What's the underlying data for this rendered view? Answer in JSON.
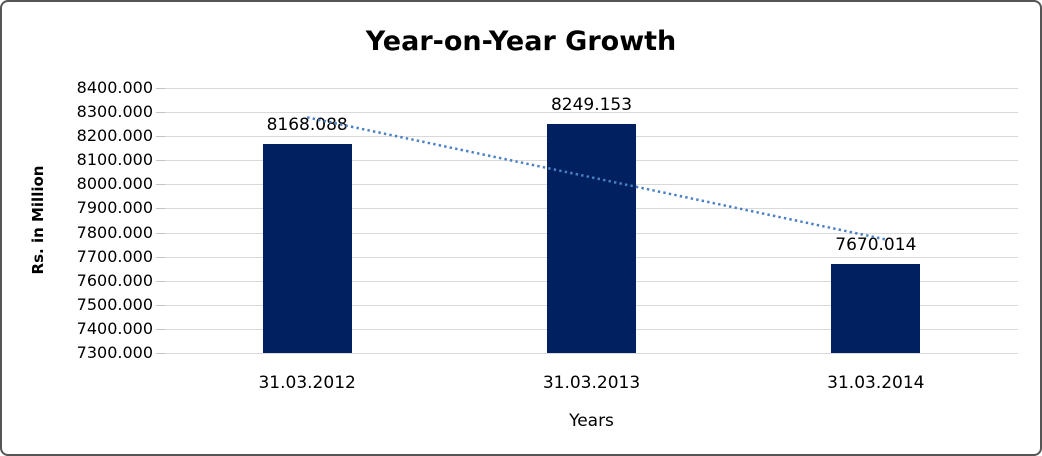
{
  "chart_data": {
    "type": "bar",
    "title": "Year-on-Year Growth",
    "categories": [
      "31.03.2012",
      "31.03.2013",
      "31.03.2014"
    ],
    "values": [
      8168.088,
      8249.153,
      7670.014
    ],
    "data_labels": [
      "8168.088",
      "8249.153",
      "7670.014"
    ],
    "xlabel": "Years",
    "ylabel": "Rs. in Million",
    "ylim": [
      7300,
      8400
    ],
    "ytick_step": 100,
    "ytick_labels": [
      "8400.000",
      "8300.000",
      "8200.000",
      "8100.000",
      "8000.000",
      "7900.000",
      "7800.000",
      "7700.000",
      "7600.000",
      "7500.000",
      "7400.000",
      "7300.000"
    ],
    "grid": true,
    "legend": "none",
    "bar_color": "#012060",
    "gridline_color": "#d9d9d9",
    "trendline": {
      "type": "linear",
      "style": "dotted",
      "color": "#4a80c4"
    }
  }
}
